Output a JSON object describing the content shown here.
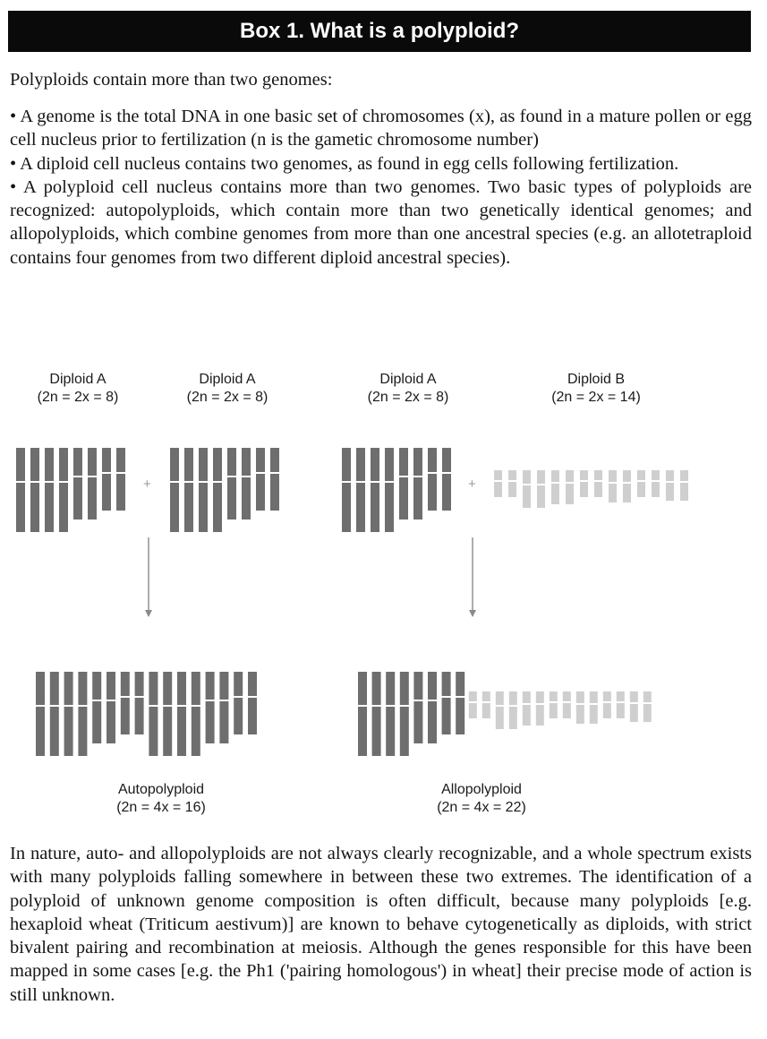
{
  "box_title": "Box 1. What is a polyploid?",
  "intro": "Polyploids contain more than two genomes:",
  "bullets": [
    "• A genome is the total DNA in one basic set of chromosomes (x), as found in a mature pollen or egg cell nucleus prior to fertilization (n is the gametic chromosome number)",
    "• A diploid cell nucleus contains two genomes, as found in egg cells following fertilization.",
    "• A polyploid cell nucleus contains more than two genomes. Two basic types of polyploids are recognized: autopolyploids, which contain more than two genetically identical genomes; and allopolyploids, which combine genomes from more than one ancestral species (e.g. an allotetraploid contains four genomes from two different diploid ancestral species)."
  ],
  "figure": {
    "top_labels": [
      {
        "name": "Diploid A",
        "formula": "(2n = 2x = 8)"
      },
      {
        "name": "Diploid A",
        "formula": "(2n = 2x = 8)"
      },
      {
        "name": "Diploid A",
        "formula": "(2n = 2x = 8)"
      },
      {
        "name": "Diploid B",
        "formula": "(2n = 2x = 14)"
      }
    ],
    "plus_sign": "+",
    "bottom_labels": [
      {
        "name": "Autopolyploid",
        "formula": "(2n = 4x = 16)"
      },
      {
        "name": "Allopolyploid",
        "formula": "(2n = 4x = 22)"
      }
    ],
    "colors": {
      "genome_a": "#6e6e6e",
      "genome_b": "#cfcfcf",
      "arrow": "#8a8a8a"
    }
  },
  "closing": "In nature, auto- and allopolyploids are not always clearly recognizable, and a whole spectrum exists with many polyploids falling somewhere in between these two extremes. The identification of a polyploid of unknown genome composition is often difficult, because many polyploids [e.g. hexaploid wheat (Triticum aestivum)] are known to behave cytogenetically as diploids, with strict bivalent pairing and recombination at meiosis. Although the genes responsible for this have been mapped in some cases [e.g. the Ph1 ('pairing homologous') in wheat] their precise mode of action is still unknown."
}
